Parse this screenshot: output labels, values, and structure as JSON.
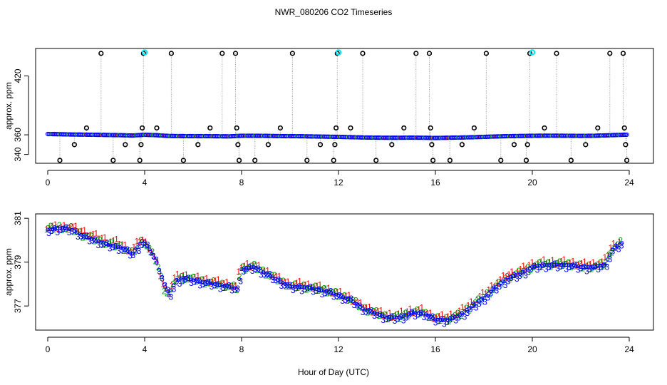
{
  "figure_title": "NWR_080206  CO2 Timeseries",
  "xlabel": "Hour of Day (UTC)",
  "colors": {
    "blue": "#0000ff",
    "green": "#00a000",
    "red": "#ff0000",
    "cyan": "#00e5ee",
    "black": "#000000",
    "gray": "#999999"
  },
  "chart_data": [
    {
      "type": "scatter",
      "title": "",
      "xlabel": "",
      "ylabel": "approx. ppm",
      "xlim": [
        -0.5,
        25
      ],
      "ylim": [
        331,
        448
      ],
      "xticks": [
        "0",
        "4",
        "8",
        "12",
        "16",
        "20",
        "24"
      ],
      "yticks": [
        "340",
        "360",
        "420"
      ],
      "baseline": {
        "x": [
          0,
          0.5,
          1,
          1.5,
          2,
          2.5,
          3,
          3.5,
          4,
          4.5,
          5,
          5.5,
          6,
          6.5,
          7,
          7.5,
          8,
          8.5,
          9,
          9.5,
          10,
          10.5,
          11,
          11.5,
          12,
          12.5,
          13,
          13.5,
          14,
          14.5,
          15,
          15.5,
          16,
          16.5,
          17,
          17.5,
          18,
          18.5,
          19,
          19.5,
          20,
          20.5,
          21,
          21.5,
          22,
          22.5,
          23,
          23.5,
          23.9
        ],
        "y": [
          360.8,
          360.6,
          360.3,
          360.2,
          360.0,
          359.8,
          359.6,
          359.3,
          360.0,
          359.6,
          358.8,
          358.7,
          358.6,
          358.6,
          358.5,
          358.4,
          359.0,
          359.0,
          358.9,
          358.7,
          358.6,
          358.5,
          358.3,
          358.1,
          357.9,
          357.6,
          357.3,
          357.1,
          357.0,
          357.0,
          357.1,
          357.0,
          356.8,
          357.0,
          357.2,
          357.5,
          357.9,
          358.3,
          358.6,
          358.8,
          359.0,
          359.1,
          359.1,
          359.0,
          358.9,
          359.0,
          359.4,
          359.8,
          360.1
        ]
      },
      "spikes": [
        {
          "x": 0.5,
          "y": 334
        },
        {
          "x": 1.1,
          "y": 350
        },
        {
          "x": 1.6,
          "y": 367
        },
        {
          "x": 2.2,
          "y": 443
        },
        {
          "x": 2.7,
          "y": 334
        },
        {
          "x": 3.2,
          "y": 350
        },
        {
          "x": 3.8,
          "y": 334
        },
        {
          "x": 3.85,
          "y": 350
        },
        {
          "x": 3.9,
          "y": 367
        },
        {
          "x": 3.95,
          "y": 443
        },
        {
          "x": 4.5,
          "y": 367
        },
        {
          "x": 5.1,
          "y": 443
        },
        {
          "x": 5.6,
          "y": 334
        },
        {
          "x": 6.2,
          "y": 350
        },
        {
          "x": 6.7,
          "y": 367
        },
        {
          "x": 7.2,
          "y": 443
        },
        {
          "x": 7.75,
          "y": 443
        },
        {
          "x": 7.8,
          "y": 367
        },
        {
          "x": 7.85,
          "y": 350
        },
        {
          "x": 7.9,
          "y": 334
        },
        {
          "x": 8.55,
          "y": 334
        },
        {
          "x": 9.1,
          "y": 350
        },
        {
          "x": 9.6,
          "y": 367
        },
        {
          "x": 10.1,
          "y": 443
        },
        {
          "x": 10.7,
          "y": 334
        },
        {
          "x": 11.25,
          "y": 350
        },
        {
          "x": 11.8,
          "y": 334
        },
        {
          "x": 11.85,
          "y": 350
        },
        {
          "x": 11.9,
          "y": 367
        },
        {
          "x": 11.95,
          "y": 443
        },
        {
          "x": 12.5,
          "y": 367
        },
        {
          "x": 13.0,
          "y": 443
        },
        {
          "x": 13.55,
          "y": 334
        },
        {
          "x": 14.2,
          "y": 350
        },
        {
          "x": 14.7,
          "y": 367
        },
        {
          "x": 15.2,
          "y": 443
        },
        {
          "x": 15.75,
          "y": 443
        },
        {
          "x": 15.8,
          "y": 367
        },
        {
          "x": 15.85,
          "y": 350
        },
        {
          "x": 15.9,
          "y": 334
        },
        {
          "x": 16.6,
          "y": 334
        },
        {
          "x": 17.1,
          "y": 350
        },
        {
          "x": 17.6,
          "y": 367
        },
        {
          "x": 18.1,
          "y": 443
        },
        {
          "x": 18.7,
          "y": 334
        },
        {
          "x": 19.25,
          "y": 350
        },
        {
          "x": 19.75,
          "y": 334
        },
        {
          "x": 19.8,
          "y": 350
        },
        {
          "x": 19.9,
          "y": 443
        },
        {
          "x": 20.5,
          "y": 367
        },
        {
          "x": 21.0,
          "y": 443
        },
        {
          "x": 21.6,
          "y": 334
        },
        {
          "x": 22.2,
          "y": 350
        },
        {
          "x": 22.7,
          "y": 367
        },
        {
          "x": 23.2,
          "y": 443
        },
        {
          "x": 23.75,
          "y": 443
        },
        {
          "x": 23.8,
          "y": 367
        },
        {
          "x": 23.85,
          "y": 350
        },
        {
          "x": 23.9,
          "y": 334
        }
      ],
      "highlights": [
        {
          "x": 4.0,
          "y": 444
        },
        {
          "x": 12.0,
          "y": 444
        },
        {
          "x": 20.0,
          "y": 444
        }
      ]
    },
    {
      "type": "scatter",
      "title": "",
      "xlabel": "",
      "ylabel": "approx. ppm",
      "xlim": [
        -0.5,
        25
      ],
      "ylim": [
        375.9,
        381.2
      ],
      "xticks": [
        "0",
        "4",
        "8",
        "12",
        "16",
        "20",
        "24"
      ],
      "yticks": [
        "377",
        "379",
        "381"
      ],
      "markers": [
        "1",
        "2",
        "3"
      ],
      "series_x": [
        0,
        0.5,
        1,
        1.5,
        2,
        2.5,
        3,
        3.5,
        3.9,
        4.2,
        4.5,
        4.8,
        5.0,
        5.3,
        5.6,
        6,
        6.5,
        7,
        7.5,
        7.8,
        8.0,
        8.5,
        9,
        9.5,
        10,
        10.5,
        11,
        11.5,
        12,
        12.5,
        13,
        13.5,
        14,
        14.5,
        15,
        15.5,
        16,
        16.5,
        17,
        17.5,
        18,
        18.5,
        19,
        19.5,
        20,
        20.5,
        21,
        21.5,
        22,
        22.5,
        23,
        23.3,
        23.7
      ],
      "series": [
        {
          "name": "1",
          "values": [
            380.6,
            380.6,
            380.6,
            380.4,
            380.2,
            380.0,
            379.9,
            379.5,
            380.1,
            379.7,
            379.1,
            378.0,
            377.6,
            378.3,
            378.4,
            378.3,
            378.2,
            378.1,
            378.0,
            377.9,
            378.8,
            378.9,
            378.6,
            378.3,
            378.0,
            378.0,
            377.9,
            377.8,
            377.6,
            377.4,
            377.0,
            376.8,
            376.6,
            376.6,
            376.8,
            376.8,
            376.5,
            376.5,
            376.7,
            377.1,
            377.5,
            378.0,
            378.4,
            378.6,
            378.9,
            379.0,
            379.0,
            379.0,
            378.9,
            378.9,
            379.0,
            379.7,
            380.0
          ]
        },
        {
          "name": "2",
          "values": [
            380.5,
            380.6,
            380.5,
            380.2,
            380.0,
            379.8,
            379.7,
            379.4,
            380.0,
            379.6,
            379.0,
            377.8,
            377.5,
            378.2,
            378.3,
            378.2,
            378.1,
            378.0,
            377.9,
            377.8,
            378.7,
            378.8,
            378.5,
            378.2,
            377.9,
            377.9,
            377.8,
            377.7,
            377.5,
            377.3,
            376.9,
            376.7,
            376.5,
            376.5,
            376.7,
            376.7,
            376.4,
            376.4,
            376.6,
            377.0,
            377.4,
            377.9,
            378.3,
            378.5,
            378.8,
            378.9,
            378.9,
            378.9,
            378.8,
            378.8,
            378.9,
            379.6,
            379.9
          ]
        },
        {
          "name": "3",
          "values": [
            380.4,
            380.5,
            380.4,
            380.1,
            379.9,
            379.7,
            379.6,
            379.3,
            379.9,
            379.5,
            378.9,
            377.9,
            377.4,
            378.1,
            378.2,
            378.1,
            378.0,
            377.9,
            377.8,
            377.7,
            378.6,
            378.7,
            378.4,
            378.1,
            377.8,
            377.8,
            377.7,
            377.6,
            377.4,
            377.2,
            376.8,
            376.6,
            376.4,
            376.4,
            376.6,
            376.6,
            376.3,
            376.3,
            376.5,
            376.9,
            377.3,
            377.8,
            378.2,
            378.4,
            378.7,
            378.8,
            378.8,
            378.8,
            378.7,
            378.7,
            378.8,
            379.5,
            379.8
          ]
        }
      ]
    }
  ]
}
